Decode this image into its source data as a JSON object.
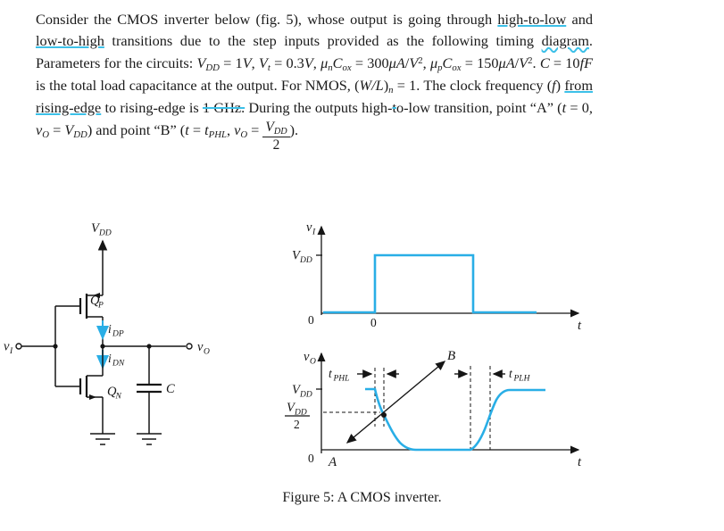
{
  "problem": {
    "segments": [
      {
        "t": "Consider the CMOS inverter below (fig. 5), whose output is going through "
      },
      {
        "t": "high-to-low",
        "s": "ul"
      },
      {
        "t": " and "
      },
      {
        "t": "low-to-high",
        "s": "ul"
      },
      {
        "t": " transitions due to the step inputs provided as the following timing "
      },
      {
        "t": "diagram",
        "s": "wavy"
      },
      {
        "t": ". Parameters for the circuits: "
      },
      {
        "t": "V",
        "s": "i"
      },
      {
        "t": "DD",
        "s": "sub"
      },
      {
        "t": " = 1"
      },
      {
        "t": "V",
        "s": "i"
      },
      {
        "t": ", "
      },
      {
        "t": "V",
        "s": "i"
      },
      {
        "t": "t",
        "s": "sub"
      },
      {
        "t": " = 0.3"
      },
      {
        "t": "V",
        "s": "i"
      },
      {
        "t": ", "
      },
      {
        "t": "μ",
        "s": "i"
      },
      {
        "t": "n",
        "s": "sub"
      },
      {
        "t": "C",
        "s": "i"
      },
      {
        "t": "ox",
        "s": "sub"
      },
      {
        "t": " = 300"
      },
      {
        "t": "μA",
        "s": "i"
      },
      {
        "t": "/"
      },
      {
        "t": "V",
        "s": "i"
      },
      {
        "t": "2",
        "s": "sup"
      },
      {
        "t": ", "
      },
      {
        "t": "μ",
        "s": "i"
      },
      {
        "t": "p",
        "s": "sub"
      },
      {
        "t": "C",
        "s": "i"
      },
      {
        "t": "ox",
        "s": "sub"
      },
      {
        "t": " = 150"
      },
      {
        "t": "μA",
        "s": "i"
      },
      {
        "t": "/"
      },
      {
        "t": "V",
        "s": "i"
      },
      {
        "t": "2",
        "s": "sup"
      },
      {
        "t": ". "
      },
      {
        "t": "C",
        "s": "i"
      },
      {
        "t": " = 10"
      },
      {
        "t": "fF",
        "s": "i"
      },
      {
        "t": " is the total load capacitance at the output. For NMOS, ("
      },
      {
        "t": "W/L",
        "s": "i"
      },
      {
        "t": ")"
      },
      {
        "t": "n",
        "s": "sub"
      },
      {
        "t": " = 1. The clock frequency ("
      },
      {
        "t": "f",
        "s": "i"
      },
      {
        "t": ") "
      },
      {
        "t": "from rising-edge",
        "s": "ul"
      },
      {
        "t": " to rising-edge is "
      },
      {
        "t": "1 GHz.",
        "s": "st"
      },
      {
        "t": " During the outputs high-"
      },
      {
        "t": "t",
        "s": "st"
      },
      {
        "t": "o-low transition, point “A” ("
      },
      {
        "t": "t",
        "s": "i"
      },
      {
        "t": " = 0, "
      },
      {
        "t": "v",
        "s": "i"
      },
      {
        "t": "O",
        "s": "sub"
      },
      {
        "t": " = "
      },
      {
        "t": "V",
        "s": "i"
      },
      {
        "t": "DD",
        "s": "sub"
      },
      {
        "t": ") and point “B” ("
      },
      {
        "t": "t",
        "s": "i"
      },
      {
        "t": " = "
      },
      {
        "t": "t",
        "s": "i"
      },
      {
        "t": "PHL",
        "s": "sub"
      },
      {
        "t": ", "
      },
      {
        "t": "v",
        "s": "i"
      },
      {
        "t": "O",
        "s": "sub"
      },
      {
        "t": " = "
      },
      {
        "frac": {
          "num": [
            {
              "t": "V",
              "s": "i"
            },
            {
              "t": "DD",
              "s": "sub"
            }
          ],
          "den": [
            {
              "t": "2"
            }
          ]
        }
      },
      {
        "t": ")."
      }
    ]
  },
  "figure": {
    "caption": "Figure 5: A CMOS inverter.",
    "colors": {
      "waveform": "#29aee6",
      "annotation": "#3cc0e8"
    },
    "circuit": {
      "vdd_base": "V",
      "vdd_sub": "DD",
      "qp_base": "Q",
      "qp_sub": "P",
      "idp_base": "i",
      "idp_sub": "DP",
      "idn_base": "i",
      "idn_sub": "DN",
      "qn_base": "Q",
      "qn_sub": "N",
      "cap_label": "C",
      "vi_base": "v",
      "vi_sub": "I",
      "vo_base": "v",
      "vo_sub": "O"
    },
    "vi_plot": {
      "axis_base": "v",
      "axis_sub": "I",
      "vdd_base": "V",
      "vdd_sub": "DD",
      "origin_zero": "0",
      "edge_zero": "0",
      "time_label": "t"
    },
    "vo_plot": {
      "axis_base": "v",
      "axis_sub": "O",
      "vdd_base": "V",
      "vdd_sub": "DD",
      "half_num_base": "V",
      "half_num_sub": "DD",
      "half_den": "2",
      "origin_zero": "0",
      "time_label": "t",
      "tphl_base": "t",
      "tphl_sub": "PHL",
      "tplh_base": "t",
      "tplh_sub": "PLH",
      "point_a": "A",
      "point_b": "B"
    }
  }
}
